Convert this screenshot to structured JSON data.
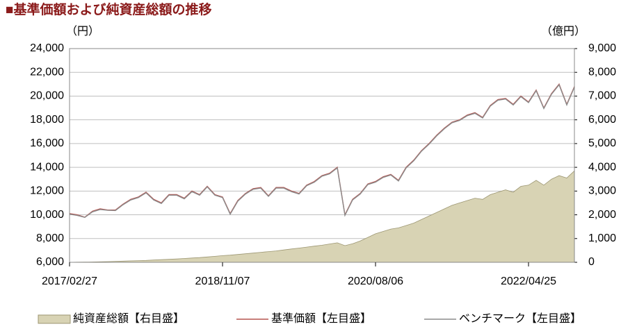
{
  "chart_data": {
    "type": "line",
    "title": "■基準価額および純資産総額の推移",
    "y_unit": "（円）",
    "y2_unit": "（億円）",
    "categories": [
      "2017/02/27",
      null,
      null,
      null,
      null,
      null,
      null,
      null,
      null,
      null,
      null,
      null,
      null,
      null,
      null,
      null,
      null,
      null,
      null,
      null,
      "2018/11/07",
      null,
      null,
      null,
      null,
      null,
      null,
      null,
      null,
      null,
      null,
      null,
      null,
      null,
      null,
      null,
      null,
      null,
      null,
      null,
      "2020/08/06",
      null,
      null,
      null,
      null,
      null,
      null,
      null,
      null,
      null,
      null,
      null,
      null,
      null,
      null,
      null,
      null,
      null,
      null,
      null,
      "2022/04/25",
      null,
      null,
      null,
      null,
      null,
      null
    ],
    "ylim": [
      6000,
      24000
    ],
    "yticks": [
      {
        "value": 6000,
        "label": "6,000"
      },
      {
        "value": 8000,
        "label": "8,000"
      },
      {
        "value": 10000,
        "label": "10,000"
      },
      {
        "value": 12000,
        "label": "12,000"
      },
      {
        "value": 14000,
        "label": "14,000"
      },
      {
        "value": 16000,
        "label": "16,000"
      },
      {
        "value": 18000,
        "label": "18,000"
      },
      {
        "value": 20000,
        "label": "20,000"
      },
      {
        "value": 22000,
        "label": "22,000"
      },
      {
        "value": 24000,
        "label": "24,000"
      }
    ],
    "y2lim": [
      0,
      9000
    ],
    "y2ticks": [
      0,
      {
        "value": 1000,
        "label": "1,000"
      },
      {
        "value": 2000,
        "label": "2,000"
      },
      {
        "value": 3000,
        "label": "3,000"
      },
      {
        "value": 4000,
        "label": "4,000"
      },
      {
        "value": 5000,
        "label": "5,000"
      },
      {
        "value": 6000,
        "label": "6,000"
      },
      {
        "value": 7000,
        "label": "7,000"
      },
      {
        "value": 8000,
        "label": "8,000"
      },
      {
        "value": 9000,
        "label": "9,000"
      }
    ],
    "grid": true,
    "legend": "bottom",
    "series": [
      {
        "name": "純資産総額【右目盛】",
        "type": "area",
        "axis": "y2",
        "color": "#d8d3b4",
        "values": [
          0,
          5,
          10,
          15,
          20,
          30,
          40,
          50,
          60,
          70,
          80,
          95,
          110,
          125,
          140,
          160,
          180,
          200,
          225,
          250,
          280,
          300,
          330,
          360,
          390,
          420,
          450,
          480,
          520,
          560,
          600,
          640,
          680,
          720,
          770,
          820,
          700,
          780,
          900,
          1050,
          1200,
          1300,
          1400,
          1450,
          1550,
          1650,
          1800,
          1950,
          2100,
          2250,
          2400,
          2500,
          2600,
          2700,
          2650,
          2850,
          2950,
          3050,
          2950,
          3200,
          3250,
          3450,
          3250,
          3500,
          3650,
          3550,
          3850
        ]
      },
      {
        "name": "基準価額【左目盛】",
        "type": "line",
        "color": "#b5534f",
        "values": [
          10100,
          10000,
          9800,
          10300,
          10500,
          10400,
          10400,
          10900,
          11300,
          11500,
          11900,
          11300,
          11000,
          11700,
          11700,
          11400,
          12000,
          11700,
          12400,
          11700,
          11500,
          10100,
          11200,
          11800,
          12200,
          12300,
          11600,
          12300,
          12300,
          12000,
          11800,
          12500,
          12800,
          13300,
          13500,
          14000,
          10000,
          11300,
          11800,
          12600,
          12800,
          13200,
          13400,
          12900,
          14000,
          14600,
          15400,
          16000,
          16700,
          17300,
          17800,
          18000,
          18400,
          18600,
          18200,
          19200,
          19700,
          19800,
          19300,
          20000,
          19500,
          20500,
          19000,
          20200,
          21000,
          19300,
          20800
        ]
      },
      {
        "name": "ベンチマーク【左目盛】",
        "type": "line",
        "color": "#8c8c8c",
        "values": [
          10050,
          9950,
          9780,
          10250,
          10450,
          10380,
          10360,
          10850,
          11250,
          11450,
          11850,
          11250,
          10950,
          11650,
          11650,
          11350,
          11950,
          11650,
          12350,
          11650,
          11450,
          10050,
          11150,
          11750,
          12150,
          12250,
          11550,
          12250,
          12250,
          11950,
          11750,
          12450,
          12750,
          13250,
          13450,
          13950,
          9950,
          11250,
          11750,
          12550,
          12750,
          13150,
          13350,
          12850,
          13950,
          14550,
          15350,
          15950,
          16650,
          17250,
          17750,
          17950,
          18350,
          18550,
          18150,
          19150,
          19650,
          19750,
          19250,
          19950,
          19450,
          20450,
          18950,
          20150,
          20950,
          19250,
          20750
        ]
      }
    ]
  }
}
